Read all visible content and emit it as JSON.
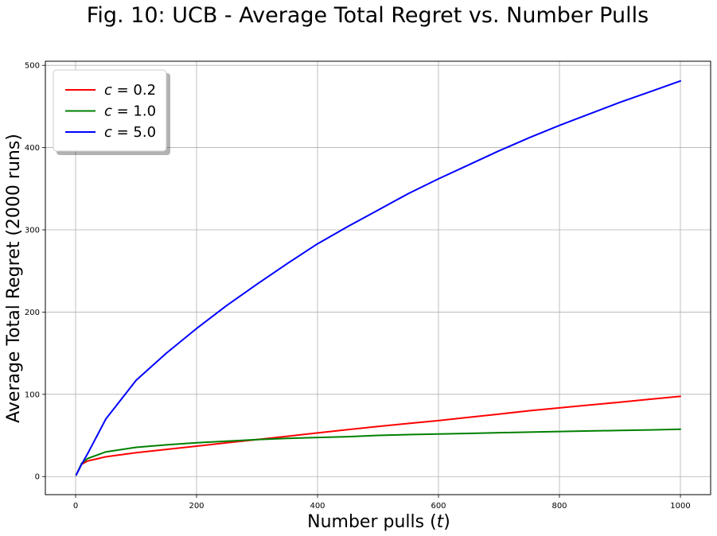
{
  "chart_data": {
    "type": "line",
    "title": "Fig. 10: UCB - Average Total Regret vs. Number Pulls",
    "xlabel": "Number pulls (t)",
    "ylabel": "Average Total Regret (2000 runs)",
    "xlim": [
      -50,
      1050
    ],
    "ylim": [
      -22,
      505
    ],
    "xticks": [
      0,
      200,
      400,
      600,
      800,
      1000
    ],
    "yticks": [
      0,
      100,
      200,
      300,
      400,
      500
    ],
    "grid": true,
    "legend_position": "top-left",
    "series": [
      {
        "name": "c = 0.2",
        "color": "#ff0000",
        "x": [
          1,
          10,
          20,
          50,
          100,
          150,
          200,
          250,
          300,
          350,
          400,
          450,
          500,
          550,
          600,
          650,
          700,
          750,
          800,
          850,
          900,
          950,
          1000
        ],
        "y": [
          2,
          15,
          19,
          24,
          29,
          33,
          37,
          41,
          45,
          49,
          53,
          57,
          61,
          64.5,
          68,
          72,
          76,
          80,
          83.5,
          87,
          90.5,
          94,
          97.5
        ]
      },
      {
        "name": "c = 1.0",
        "color": "#008000",
        "x": [
          1,
          10,
          20,
          50,
          100,
          150,
          200,
          250,
          300,
          350,
          400,
          450,
          500,
          550,
          600,
          650,
          700,
          750,
          800,
          850,
          900,
          950,
          1000
        ],
        "y": [
          2,
          16,
          22,
          30,
          35.5,
          38.5,
          41,
          43,
          45,
          46.5,
          47.5,
          48.5,
          50,
          51,
          51.8,
          52.5,
          53.3,
          54,
          54.8,
          55.5,
          56,
          56.7,
          57.5
        ]
      },
      {
        "name": "c = 5.0",
        "color": "#0000ff",
        "x": [
          1,
          10,
          20,
          50,
          100,
          150,
          200,
          250,
          300,
          350,
          400,
          450,
          500,
          550,
          600,
          650,
          700,
          750,
          800,
          850,
          900,
          950,
          1000
        ],
        "y": [
          2,
          15,
          28,
          70,
          117,
          150,
          180,
          208,
          234,
          259,
          283,
          304,
          324,
          344,
          362,
          379,
          396,
          412,
          427,
          441,
          455,
          468,
          481
        ]
      }
    ]
  }
}
